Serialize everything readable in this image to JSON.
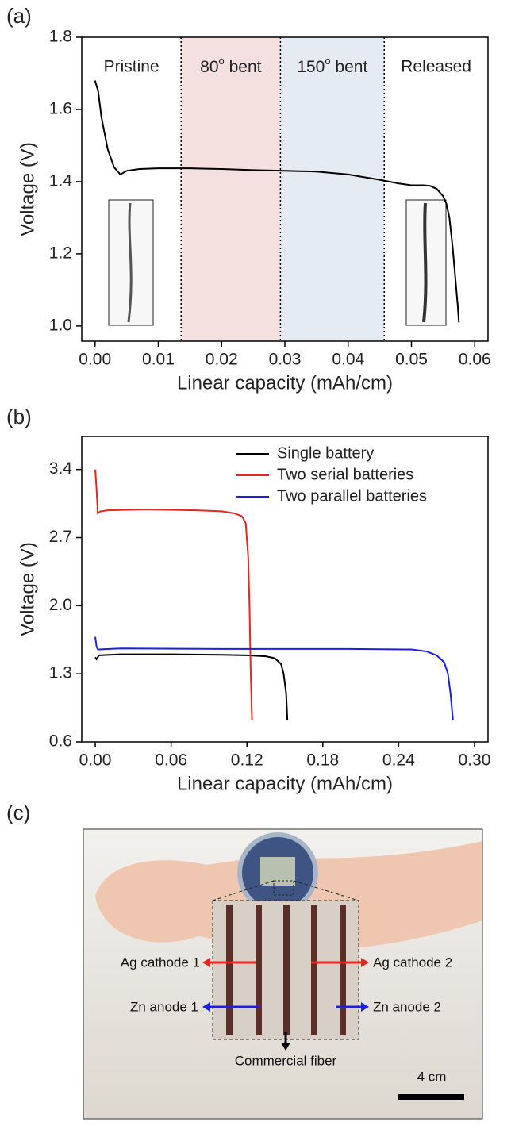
{
  "panel_labels": [
    "(a)",
    "(b)",
    "(c)"
  ],
  "chart_data": [
    {
      "type": "line",
      "x_label": "Linear capacity (mAh/cm)",
      "y_label": "Voltage (V)",
      "xlim": [
        -0.0021,
        0.0621
      ],
      "ylim": [
        0.958,
        1.8
      ],
      "xticks": [
        {
          "value": 0,
          "label": "0.00"
        },
        0.01,
        0.02,
        0.03,
        0.04,
        0.05,
        0.06
      ],
      "yticks": [
        {
          "value": 1,
          "label": "1.0"
        },
        1.2,
        1.4,
        1.6,
        1.8
      ],
      "dividers": [
        0.0136,
        0.0293,
        0.0457
      ],
      "regions": [
        {
          "label": "Pristine"
        },
        {
          "label": [
            "80",
            "o",
            " bent"
          ],
          "color": "#f4e1df"
        },
        {
          "label": [
            "150",
            "o",
            " bent"
          ],
          "color": "#e4ebf3"
        },
        {
          "label": "Released"
        }
      ],
      "color": "#000000",
      "x": [
        0,
        0.0005,
        0.001,
        0.002,
        0.003,
        0.004,
        0.005,
        0.007,
        0.01,
        0.015,
        0.02,
        0.025,
        0.03,
        0.035,
        0.04,
        0.045,
        0.048,
        0.05,
        0.052,
        0.053,
        0.054,
        0.055,
        0.0555,
        0.056,
        0.0565,
        0.057,
        0.0573,
        0.0575
      ],
      "values": [
        1.68,
        1.65,
        1.58,
        1.49,
        1.44,
        1.42,
        1.43,
        1.435,
        1.437,
        1.437,
        1.435,
        1.432,
        1.43,
        1.428,
        1.42,
        1.405,
        1.395,
        1.39,
        1.39,
        1.388,
        1.38,
        1.36,
        1.34,
        1.3,
        1.22,
        1.12,
        1.06,
        1.01
      ]
    },
    {
      "type": "line",
      "x_label": "Linear capacity (mAh/cm)",
      "y_label": "Voltage (V)",
      "xlim": [
        -0.0107,
        0.3107
      ],
      "ylim": [
        0.6,
        3.74
      ],
      "xticks": [
        {
          "value": 0,
          "label": "0.00"
        },
        0.06,
        0.12,
        0.18,
        0.24,
        {
          "value": 0.3,
          "label": "0.30"
        }
      ],
      "yticks": [
        0.6,
        1.3,
        {
          "value": 2,
          "label": "2.0"
        },
        2.7,
        3.4
      ],
      "legend": "upper right",
      "series": [
        {
          "name": "Single battery",
          "color": "#000000",
          "x": [
            0,
            0.001,
            0.003,
            0.02,
            0.06,
            0.1,
            0.12,
            0.135,
            0.142,
            0.147,
            0.149,
            0.151,
            0.152
          ],
          "values": [
            1.47,
            1.45,
            1.49,
            1.5,
            1.5,
            1.495,
            1.49,
            1.48,
            1.46,
            1.4,
            1.3,
            1.1,
            0.82
          ]
        },
        {
          "name": "Two serial batteries",
          "color": "#e8251f",
          "x": [
            0,
            0.001,
            0.002,
            0.004,
            0.01,
            0.04,
            0.08,
            0.1,
            0.11,
            0.116,
            0.119,
            0.121,
            0.122,
            0.123,
            0.124
          ],
          "values": [
            3.4,
            3.2,
            2.95,
            2.97,
            2.98,
            2.99,
            2.98,
            2.97,
            2.95,
            2.92,
            2.85,
            2.5,
            2.0,
            1.3,
            0.82
          ]
        },
        {
          "name": "Two parallel batteries",
          "color": "#1f1fe0",
          "x": [
            0,
            0.001,
            0.002,
            0.02,
            0.1,
            0.2,
            0.25,
            0.262,
            0.27,
            0.276,
            0.279,
            0.281,
            0.283
          ],
          "values": [
            1.68,
            1.58,
            1.55,
            1.56,
            1.555,
            1.555,
            1.55,
            1.53,
            1.49,
            1.42,
            1.3,
            1.1,
            0.82
          ]
        }
      ]
    }
  ],
  "photo": {
    "labels": [
      "Ag cathode 1",
      "Ag cathode 2",
      "Zn anode 1",
      "Zn anode 2",
      "Commercial fiber",
      "4 cm"
    ]
  }
}
